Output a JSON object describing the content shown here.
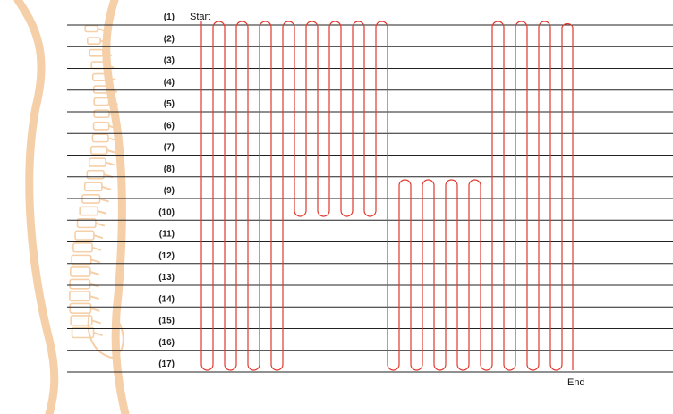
{
  "diagram": {
    "start_label": "Start",
    "end_label": "End",
    "row_labels": [
      "(1)",
      "(2)",
      "(3)",
      "(4)",
      "(5)",
      "(6)",
      "(7)",
      "(8)",
      "(9)",
      "(10)",
      "(11)",
      "(12)",
      "(13)",
      "(14)",
      "(15)",
      "(16)",
      "(17)"
    ],
    "path_color": "#e03a2e",
    "body_color": "#f5cfa8"
  }
}
